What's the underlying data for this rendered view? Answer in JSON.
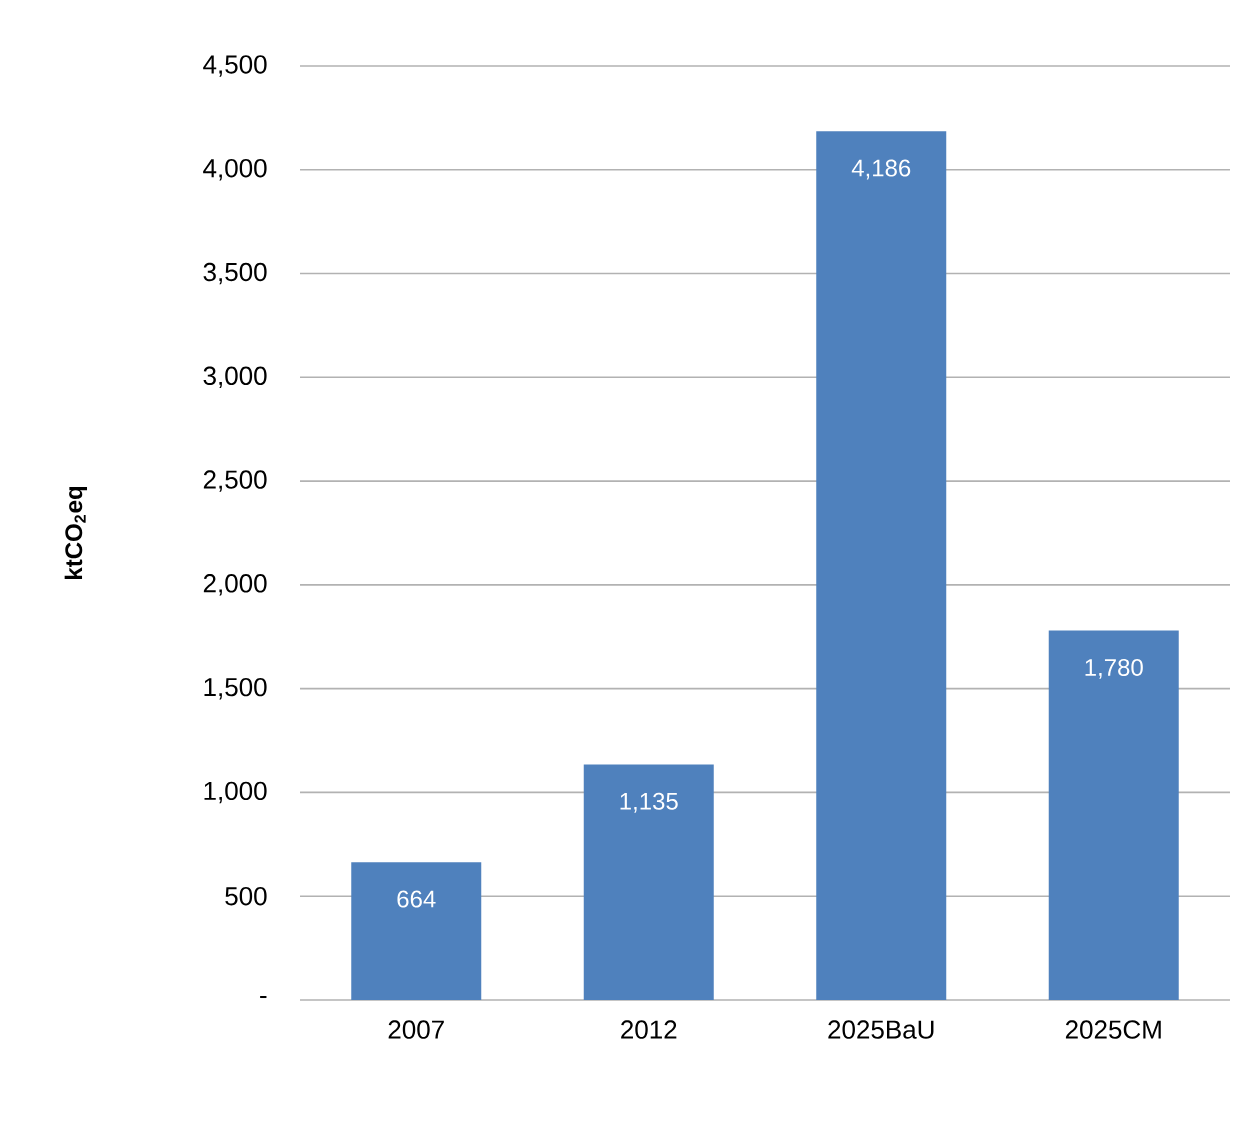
{
  "chart_data": {
    "type": "bar",
    "ylabel": "ktCO$_{2}$eq",
    "categories": [
      "2007",
      "2012",
      "2025BaU",
      "2025CM"
    ],
    "values": [
      664,
      1135,
      4186,
      1780
    ],
    "value_labels": [
      "664",
      "1,135",
      "4,186",
      "1,780"
    ],
    "color": "#4f81bd",
    "ylim": [
      0,
      4500
    ],
    "yticks": [
      {
        "value": 0,
        "label": "-"
      },
      {
        "value": 500,
        "label": "500"
      },
      {
        "value": 1000,
        "label": "1,000"
      },
      {
        "value": 1500,
        "label": "1,500"
      },
      {
        "value": 2000,
        "label": "2,000"
      },
      {
        "value": 2500,
        "label": "2,500"
      },
      {
        "value": 3000,
        "label": "3,000"
      },
      {
        "value": 3500,
        "label": "3,500"
      },
      {
        "value": 4000,
        "label": "4,000"
      },
      {
        "value": 4500,
        "label": "4,500"
      }
    ],
    "grid": "y"
  }
}
